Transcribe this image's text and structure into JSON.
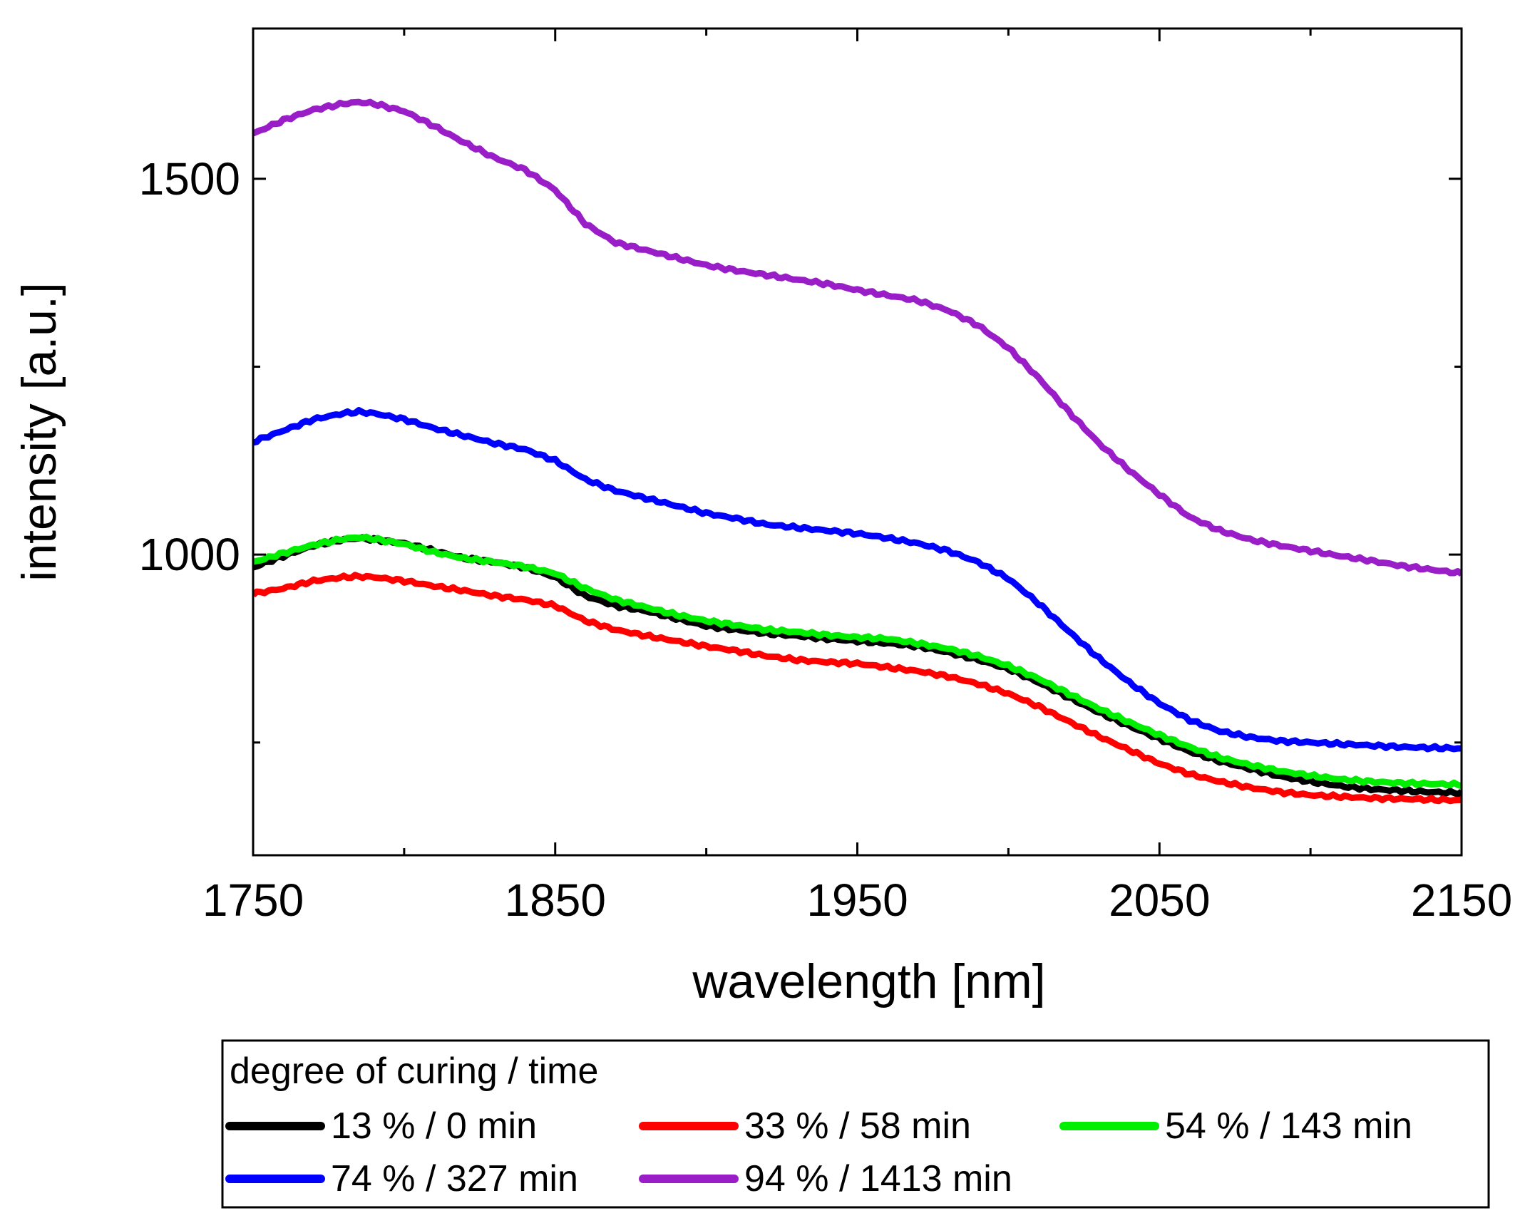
{
  "chart_data": {
    "type": "line",
    "xlabel": "wavelength [nm]",
    "ylabel": "intensity [a.u.]",
    "xlim": [
      1750,
      2150
    ],
    "ylim": [
      600,
      1700
    ],
    "x_ticks": [
      "1750",
      "1850",
      "1950",
      "2050",
      "2150"
    ],
    "y_ticks": [
      "1000",
      "1500"
    ],
    "legend_title": "degree of curing / time",
    "legend_placement": "bottom, below plot",
    "x": [
      1750,
      1760,
      1770,
      1780,
      1785,
      1790,
      1800,
      1810,
      1820,
      1830,
      1840,
      1850,
      1860,
      1870,
      1880,
      1890,
      1900,
      1910,
      1920,
      1930,
      1940,
      1950,
      1960,
      1970,
      1980,
      1990,
      2000,
      2010,
      2020,
      2030,
      2040,
      2050,
      2060,
      2070,
      2080,
      2090,
      2100,
      2110,
      2120,
      2130,
      2140,
      2150
    ],
    "series": [
      {
        "name": "13 % / 0 min",
        "color": "#000000",
        "values": [
          983,
          998,
          1012,
          1020,
          1022,
          1020,
          1015,
          1005,
          995,
          990,
          983,
          970,
          945,
          932,
          925,
          915,
          905,
          900,
          895,
          892,
          888,
          885,
          882,
          878,
          870,
          860,
          848,
          830,
          810,
          790,
          772,
          755,
          738,
          725,
          715,
          705,
          698,
          692,
          688,
          686,
          684,
          683
        ]
      },
      {
        "name": "33 % / 58 min",
        "color": "#ff0000",
        "values": [
          948,
          955,
          965,
          970,
          971,
          970,
          965,
          958,
          952,
          945,
          940,
          932,
          912,
          900,
          892,
          885,
          878,
          872,
          865,
          860,
          857,
          855,
          850,
          845,
          838,
          828,
          815,
          798,
          778,
          758,
          740,
          722,
          708,
          698,
          690,
          684,
          680,
          678,
          676,
          675,
          674,
          673
        ]
      },
      {
        "name": "54 % / 143 min",
        "color": "#00ee00",
        "values": [
          990,
          1002,
          1013,
          1021,
          1023,
          1021,
          1014,
          1003,
          995,
          990,
          984,
          975,
          955,
          940,
          930,
          920,
          912,
          906,
          900,
          897,
          893,
          890,
          888,
          882,
          875,
          865,
          852,
          835,
          815,
          795,
          777,
          760,
          744,
          730,
          720,
          712,
          706,
          701,
          698,
          696,
          695,
          694
        ]
      },
      {
        "name": "74 % / 327 min",
        "color": "#0000ff",
        "values": [
          1150,
          1165,
          1180,
          1188,
          1190,
          1188,
          1180,
          1168,
          1158,
          1148,
          1140,
          1125,
          1100,
          1085,
          1075,
          1065,
          1055,
          1048,
          1040,
          1036,
          1032,
          1028,
          1022,
          1015,
          1005,
          990,
          968,
          935,
          898,
          862,
          830,
          802,
          780,
          765,
          757,
          752,
          750,
          748,
          746,
          744,
          743,
          742
        ]
      },
      {
        "name": "94 % / 1413 min",
        "color": "#9a1ec8",
        "values": [
          1560,
          1578,
          1592,
          1600,
          1602,
          1600,
          1590,
          1570,
          1548,
          1528,
          1512,
          1485,
          1440,
          1415,
          1405,
          1395,
          1385,
          1378,
          1372,
          1366,
          1360,
          1352,
          1345,
          1338,
          1325,
          1305,
          1275,
          1235,
          1190,
          1148,
          1112,
          1080,
          1050,
          1032,
          1020,
          1012,
          1005,
          998,
          992,
          985,
          980,
          975
        ]
      }
    ]
  }
}
